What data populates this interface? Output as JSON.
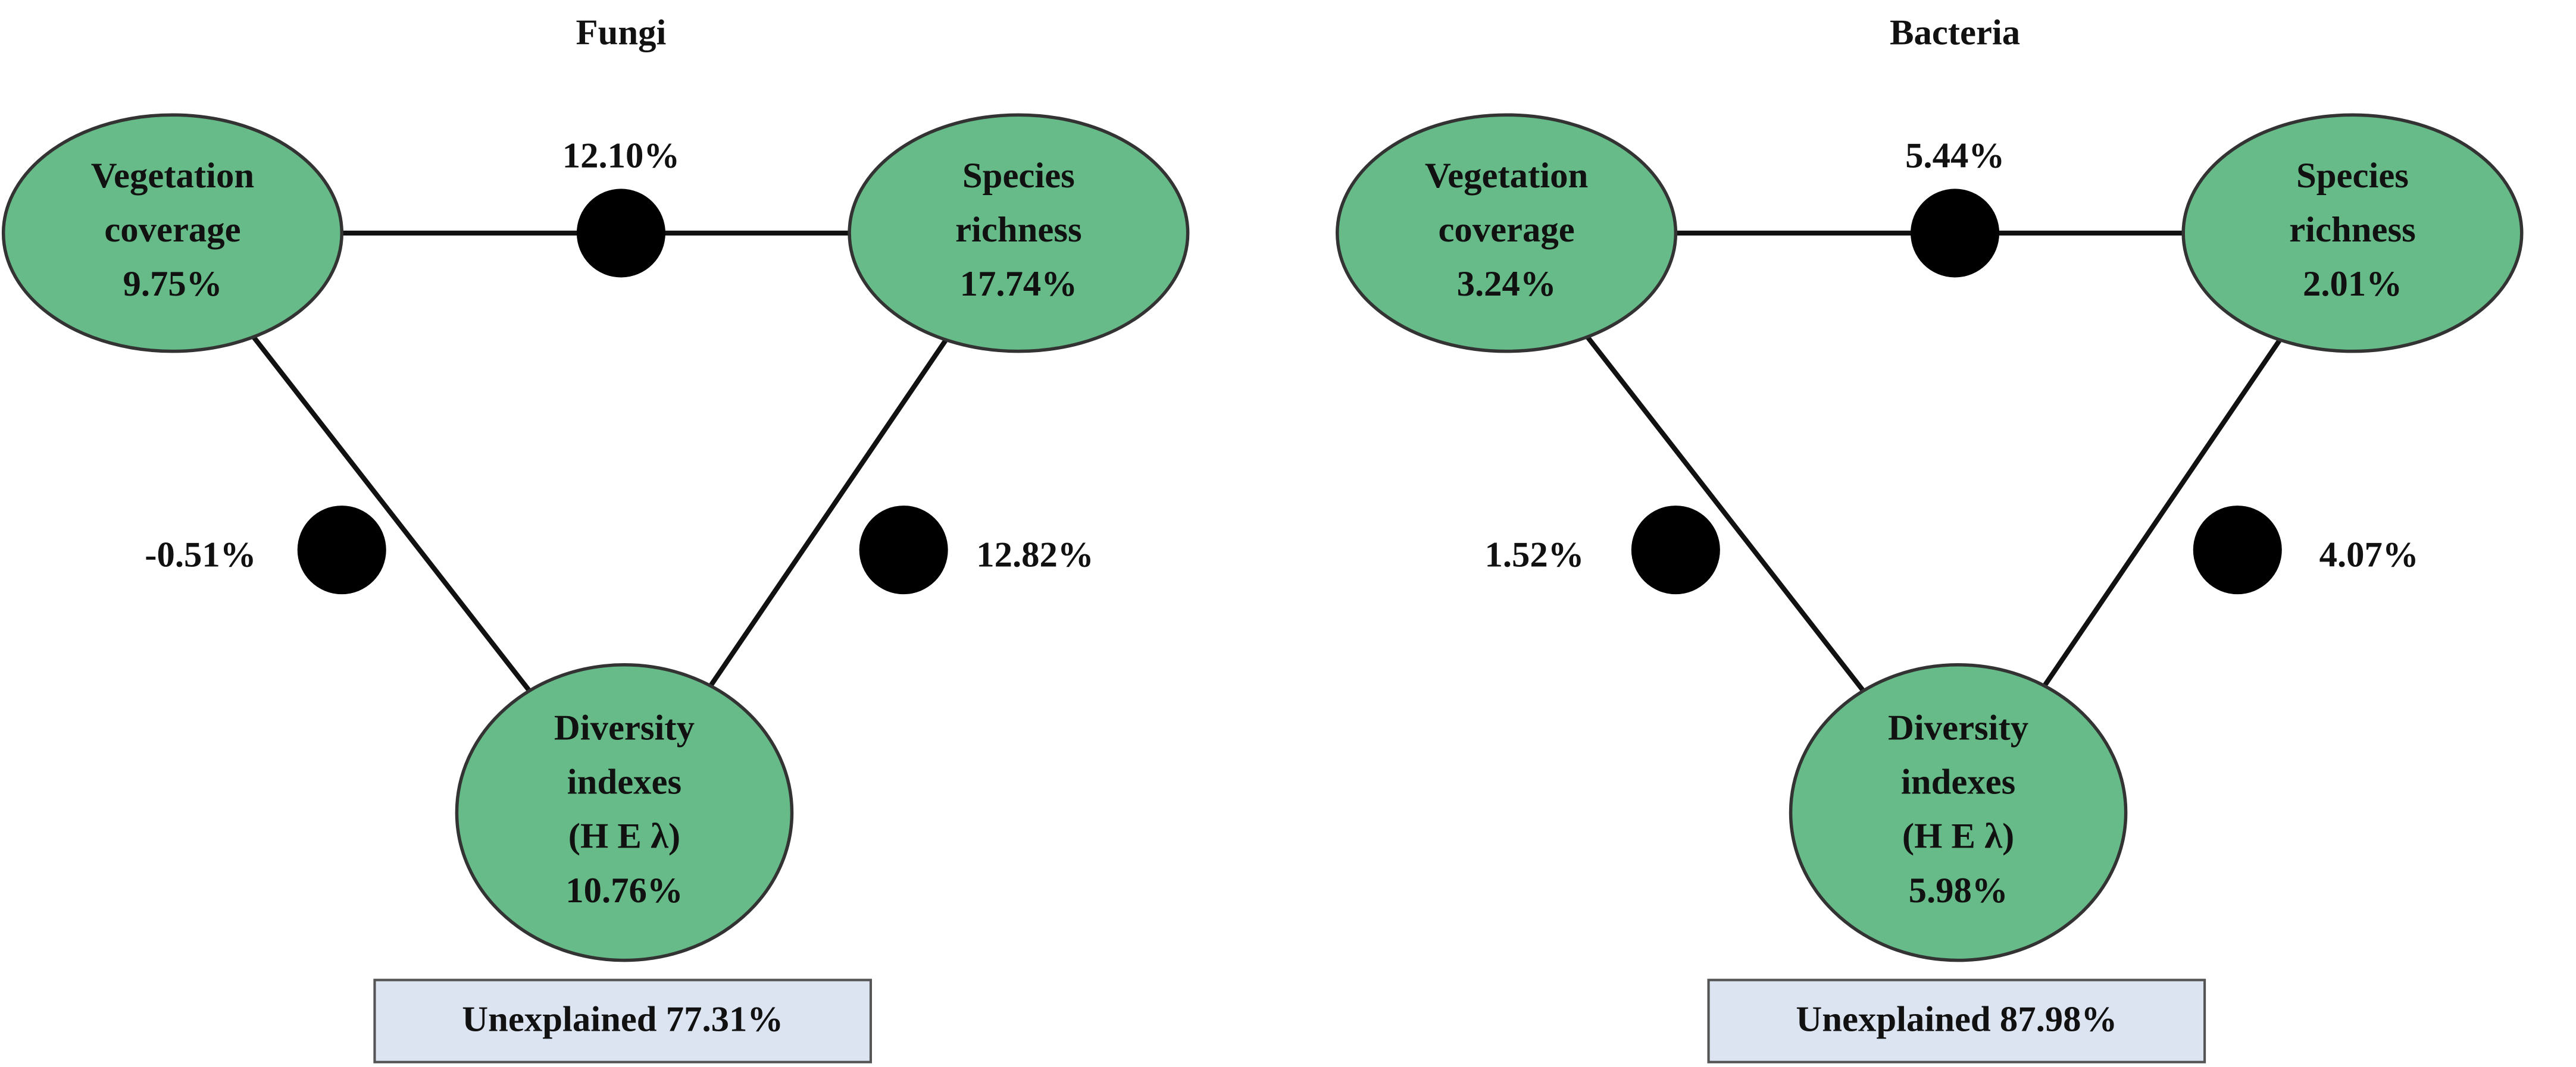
{
  "panels": [
    {
      "title": "Fungi",
      "nodes": [
        {
          "lines": [
            "Vegetation",
            "coverage",
            "9.75%"
          ]
        },
        {
          "lines": [
            "Species",
            "richness",
            "17.74%"
          ]
        },
        {
          "lines": [
            "Diversity",
            "indexes",
            "(H E λ)",
            "10.76%"
          ]
        }
      ],
      "edges": [
        {
          "label": "12.10%"
        },
        {
          "label": "-0.51%"
        },
        {
          "label": "12.82%"
        }
      ],
      "unexplained": "Unexplained 77.31%"
    },
    {
      "title": "Bacteria",
      "nodes": [
        {
          "lines": [
            "Vegetation",
            "coverage",
            "3.24%"
          ]
        },
        {
          "lines": [
            "Species",
            "richness",
            "2.01%"
          ]
        },
        {
          "lines": [
            "Diversity",
            "indexes",
            "(H E λ)",
            "5.98%"
          ]
        }
      ],
      "edges": [
        {
          "label": "5.44%"
        },
        {
          "label": "1.52%"
        },
        {
          "label": "4.07%"
        }
      ],
      "unexplained": "Unexplained 87.98%"
    }
  ]
}
